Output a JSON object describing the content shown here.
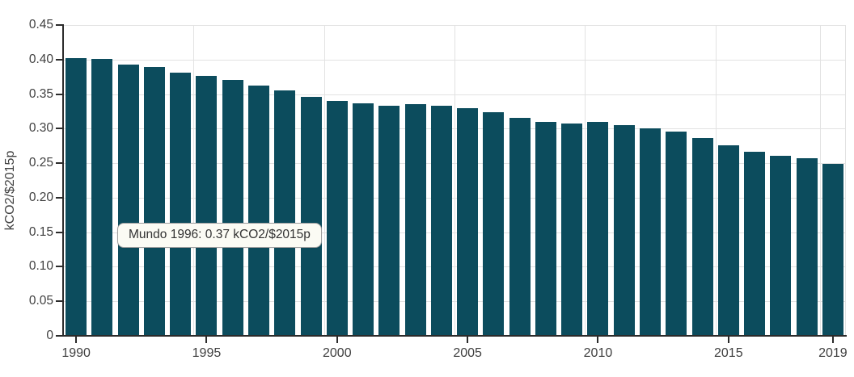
{
  "chart_data": {
    "type": "bar",
    "title": "",
    "series_name": "Mundo",
    "ylabel": "kCO2/$2015p",
    "xlabel": "",
    "unit": "kCO2/$2015p",
    "categories": [
      1990,
      1991,
      1992,
      1993,
      1994,
      1995,
      1996,
      1997,
      1998,
      1999,
      2000,
      2001,
      2002,
      2003,
      2004,
      2005,
      2006,
      2007,
      2008,
      2009,
      2010,
      2011,
      2012,
      2013,
      2014,
      2015,
      2016,
      2017,
      2018,
      2019
    ],
    "values": [
      0.402,
      0.401,
      0.393,
      0.389,
      0.381,
      0.376,
      0.37,
      0.362,
      0.355,
      0.346,
      0.34,
      0.337,
      0.333,
      0.335,
      0.333,
      0.33,
      0.324,
      0.316,
      0.31,
      0.307,
      0.31,
      0.305,
      0.3,
      0.296,
      0.286,
      0.276,
      0.267,
      0.261,
      0.257,
      0.249
    ],
    "ylim": [
      0,
      0.45
    ],
    "ytick_labels": [
      "0",
      "0.05",
      "0.10",
      "0.15",
      "0.20",
      "0.25",
      "0.30",
      "0.35",
      "0.40",
      "0.45"
    ],
    "xtick_labels": [
      "1990",
      "1995",
      "2000",
      "2005",
      "2010",
      "2015",
      "2019"
    ],
    "grid": true,
    "legend_position": "none",
    "bar_color": "#0c4c5d"
  },
  "tooltip": {
    "text": "Mundo 1996: 0.37 kCO2/$2015p"
  },
  "colors": {
    "bar": "#0c4c5d",
    "grid": "#e2e2e2",
    "axis": "#2b2b2b",
    "tick_text": "#404040",
    "tooltip_bg": "#fbfbf4",
    "tooltip_border": "#9e9e9e",
    "tooltip_text": "#333333",
    "background": "#ffffff"
  }
}
